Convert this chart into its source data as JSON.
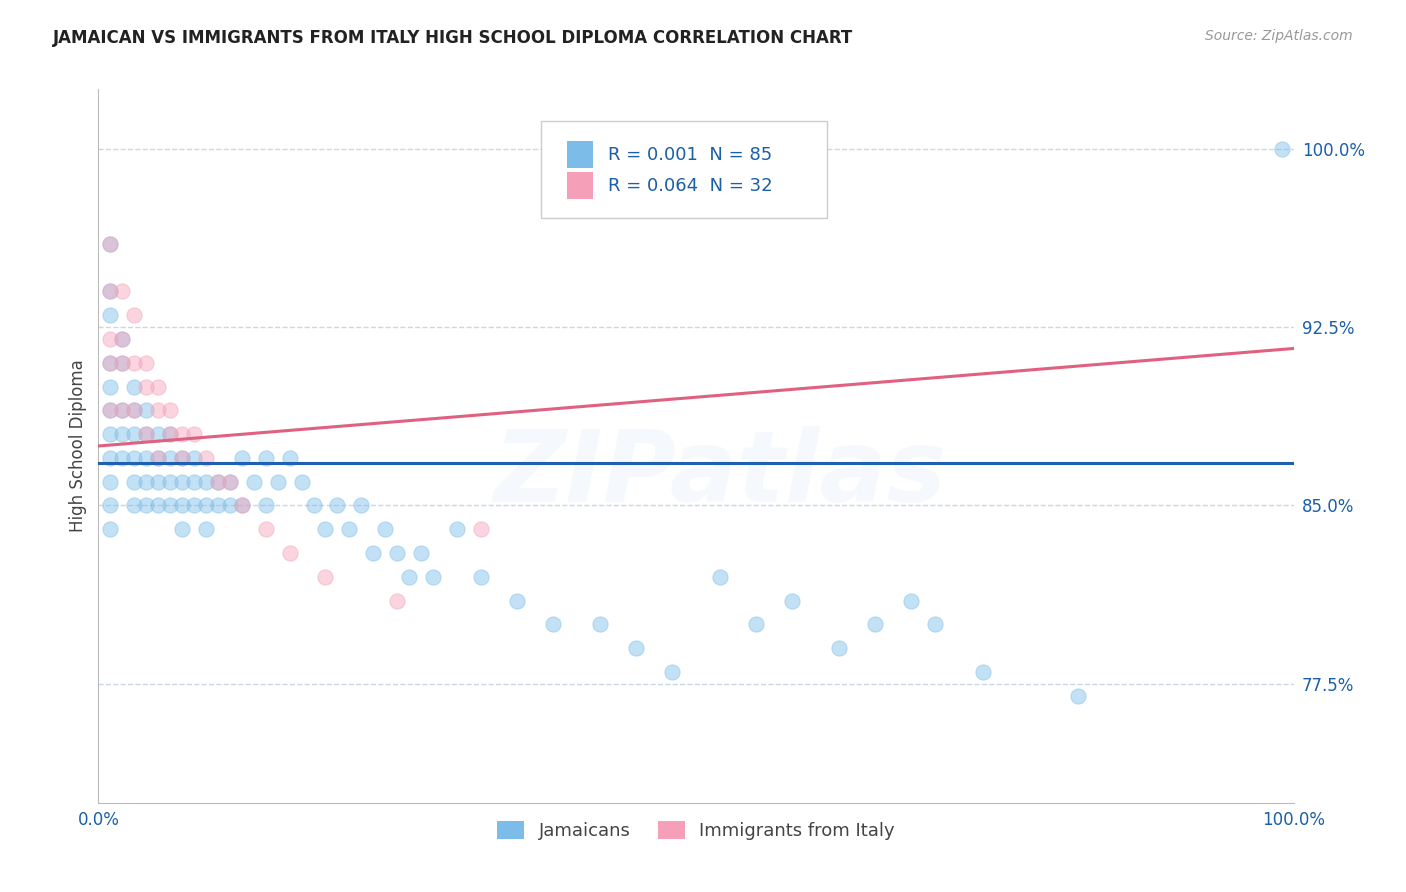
{
  "title": "JAMAICAN VS IMMIGRANTS FROM ITALY HIGH SCHOOL DIPLOMA CORRELATION CHART",
  "source_text": "Source: ZipAtlas.com",
  "ylabel": "High School Diploma",
  "x_min": 0.0,
  "x_max": 1.0,
  "y_min": 0.725,
  "y_max": 1.025,
  "yticks": [
    0.775,
    0.85,
    0.925,
    1.0
  ],
  "ytick_labels": [
    "77.5%",
    "85.0%",
    "92.5%",
    "100.0%"
  ],
  "legend_r1": "R = 0.001  N = 85",
  "legend_r2": "R = 0.064  N = 32",
  "legend_label1": "Jamaicans",
  "legend_label2": "Immigrants from Italy",
  "blue_color": "#7bbde8",
  "pink_color": "#f5a0b8",
  "blue_line_color": "#2060b0",
  "pink_line_color": "#e06080",
  "legend_text_color": "#1a5fa8",
  "dot_size": 120,
  "dot_alpha": 0.45,
  "watermark_text": "ZIPatlas",
  "watermark_alpha": 0.13,
  "blue_scatter_x": [
    0.01,
    0.01,
    0.01,
    0.01,
    0.01,
    0.01,
    0.01,
    0.01,
    0.01,
    0.01,
    0.01,
    0.02,
    0.02,
    0.02,
    0.02,
    0.02,
    0.03,
    0.03,
    0.03,
    0.03,
    0.03,
    0.03,
    0.04,
    0.04,
    0.04,
    0.04,
    0.04,
    0.05,
    0.05,
    0.05,
    0.05,
    0.06,
    0.06,
    0.06,
    0.06,
    0.07,
    0.07,
    0.07,
    0.07,
    0.08,
    0.08,
    0.08,
    0.09,
    0.09,
    0.09,
    0.1,
    0.1,
    0.11,
    0.11,
    0.12,
    0.12,
    0.13,
    0.14,
    0.14,
    0.15,
    0.16,
    0.17,
    0.18,
    0.19,
    0.2,
    0.21,
    0.22,
    0.23,
    0.24,
    0.25,
    0.26,
    0.27,
    0.28,
    0.3,
    0.32,
    0.35,
    0.38,
    0.42,
    0.45,
    0.48,
    0.52,
    0.55,
    0.58,
    0.62,
    0.65,
    0.68,
    0.7,
    0.74,
    0.82,
    0.99
  ],
  "blue_scatter_y": [
    0.96,
    0.94,
    0.93,
    0.91,
    0.9,
    0.89,
    0.88,
    0.87,
    0.86,
    0.85,
    0.84,
    0.92,
    0.91,
    0.89,
    0.88,
    0.87,
    0.9,
    0.89,
    0.88,
    0.87,
    0.86,
    0.85,
    0.89,
    0.88,
    0.87,
    0.86,
    0.85,
    0.88,
    0.87,
    0.86,
    0.85,
    0.88,
    0.87,
    0.86,
    0.85,
    0.87,
    0.86,
    0.85,
    0.84,
    0.87,
    0.86,
    0.85,
    0.86,
    0.85,
    0.84,
    0.86,
    0.85,
    0.86,
    0.85,
    0.87,
    0.85,
    0.86,
    0.87,
    0.85,
    0.86,
    0.87,
    0.86,
    0.85,
    0.84,
    0.85,
    0.84,
    0.85,
    0.83,
    0.84,
    0.83,
    0.82,
    0.83,
    0.82,
    0.84,
    0.82,
    0.81,
    0.8,
    0.8,
    0.79,
    0.78,
    0.82,
    0.8,
    0.81,
    0.79,
    0.8,
    0.81,
    0.8,
    0.78,
    0.77,
    1.0
  ],
  "pink_scatter_x": [
    0.01,
    0.01,
    0.01,
    0.01,
    0.01,
    0.02,
    0.02,
    0.02,
    0.02,
    0.03,
    0.03,
    0.03,
    0.04,
    0.04,
    0.04,
    0.05,
    0.05,
    0.05,
    0.06,
    0.06,
    0.07,
    0.07,
    0.08,
    0.09,
    0.1,
    0.11,
    0.12,
    0.14,
    0.16,
    0.19,
    0.25,
    0.32
  ],
  "pink_scatter_y": [
    0.96,
    0.94,
    0.92,
    0.91,
    0.89,
    0.94,
    0.92,
    0.91,
    0.89,
    0.93,
    0.91,
    0.89,
    0.91,
    0.9,
    0.88,
    0.9,
    0.89,
    0.87,
    0.89,
    0.88,
    0.88,
    0.87,
    0.88,
    0.87,
    0.86,
    0.86,
    0.85,
    0.84,
    0.83,
    0.82,
    0.81,
    0.84
  ],
  "blue_trend_x": [
    0.0,
    1.0
  ],
  "blue_trend_y": [
    0.868,
    0.868
  ],
  "pink_trend_x": [
    0.0,
    1.0
  ],
  "pink_trend_y": [
    0.875,
    0.916
  ],
  "grid_color": "#c8d8e8",
  "bg_color": "#ffffff",
  "tick_color": "#1a5fa8",
  "spine_color": "#bbbbbb"
}
